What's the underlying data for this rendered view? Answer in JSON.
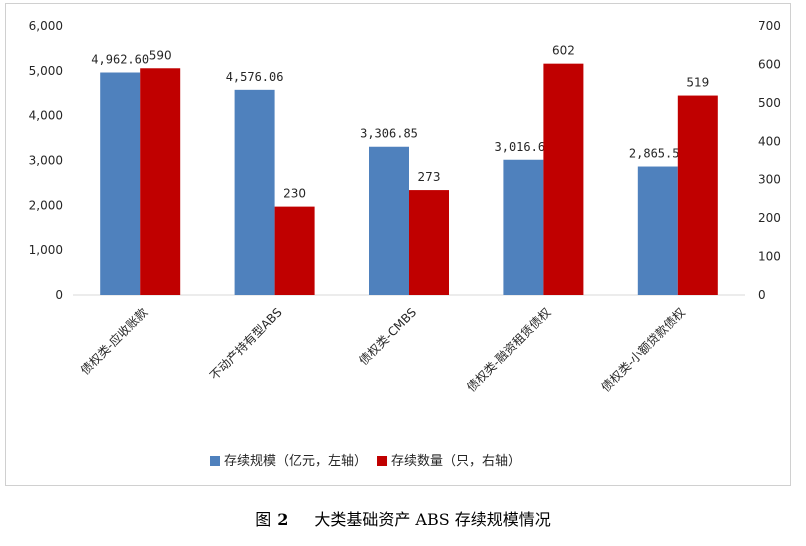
{
  "chart_data": {
    "type": "bar",
    "categories": [
      "债权类-应收账款",
      "不动产持有型ABS",
      "债权类-CMBS",
      "债权类-融资租赁债权",
      "债权类-小额贷款债权"
    ],
    "series": [
      {
        "name": "存续规模（亿元，左轴）",
        "axis": "left",
        "color": "#4f81bd",
        "values": [
          4962.6,
          4576.06,
          3306.85,
          3016.67,
          2865.58
        ],
        "labels": [
          "4,962.60",
          "4,576.06",
          "3,306.85",
          "3,016.67",
          "2,865.58"
        ]
      },
      {
        "name": "存续数量（只，右轴）",
        "axis": "right",
        "color": "#c00000",
        "values": [
          590,
          230,
          273,
          602,
          519
        ],
        "labels": [
          "590",
          "230",
          "273",
          "602",
          "519"
        ]
      }
    ],
    "y_left": {
      "min": 0,
      "max": 6000,
      "ticks": [
        "0",
        "1,000",
        "2,000",
        "3,000",
        "4,000",
        "5,000",
        "6,000"
      ]
    },
    "y_right": {
      "min": 0,
      "max": 700,
      "ticks": [
        "0",
        "100",
        "200",
        "300",
        "400",
        "500",
        "600",
        "700"
      ]
    },
    "grid": false,
    "legend": "bottom"
  },
  "caption": {
    "figure_label": "图",
    "figure_number": "2",
    "title": "大类基础资产 ABS 存续规模情况"
  }
}
